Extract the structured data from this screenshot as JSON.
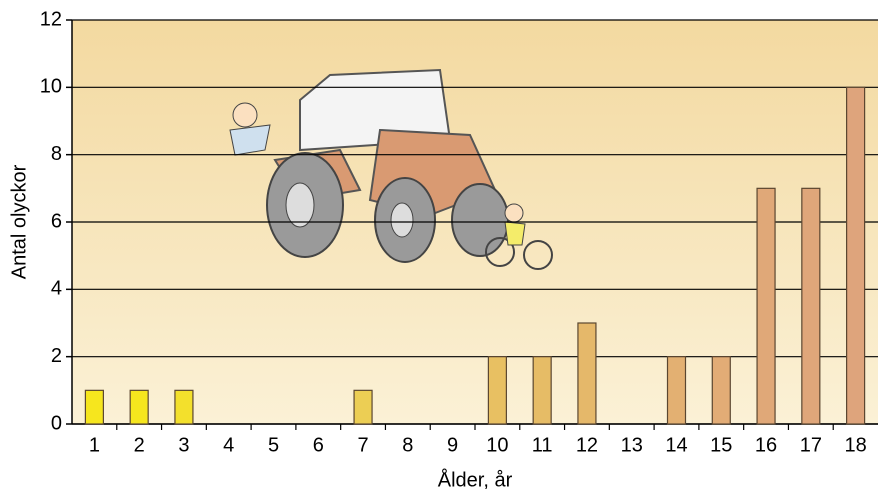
{
  "chart_data": {
    "type": "bar",
    "categories": [
      "1",
      "2",
      "3",
      "4",
      "5",
      "6",
      "7",
      "8",
      "9",
      "10",
      "11",
      "12",
      "13",
      "14",
      "15",
      "16",
      "17",
      "18"
    ],
    "values": [
      1,
      1,
      1,
      0,
      0,
      0,
      1,
      0,
      0,
      2,
      2,
      3,
      0,
      2,
      2,
      7,
      7,
      10
    ],
    "colors": [
      "#f6e61e",
      "#f6e61e",
      "#f3e02c",
      "#f0d840",
      "#eed24c",
      "#ecce54",
      "#ecce54",
      "#eac85c",
      "#e9c460",
      "#e8c062",
      "#e6bc66",
      "#e5b86a",
      "#e4b46e",
      "#e3b072",
      "#e2ac76",
      "#e0a878",
      "#dfa67a",
      "#dea47c"
    ],
    "xlabel": "Ålder, år",
    "ylabel": "Antal olyckor",
    "ylim": [
      0,
      12
    ],
    "yticks": [
      0,
      2,
      4,
      6,
      8,
      10,
      12
    ],
    "grid": true
  }
}
